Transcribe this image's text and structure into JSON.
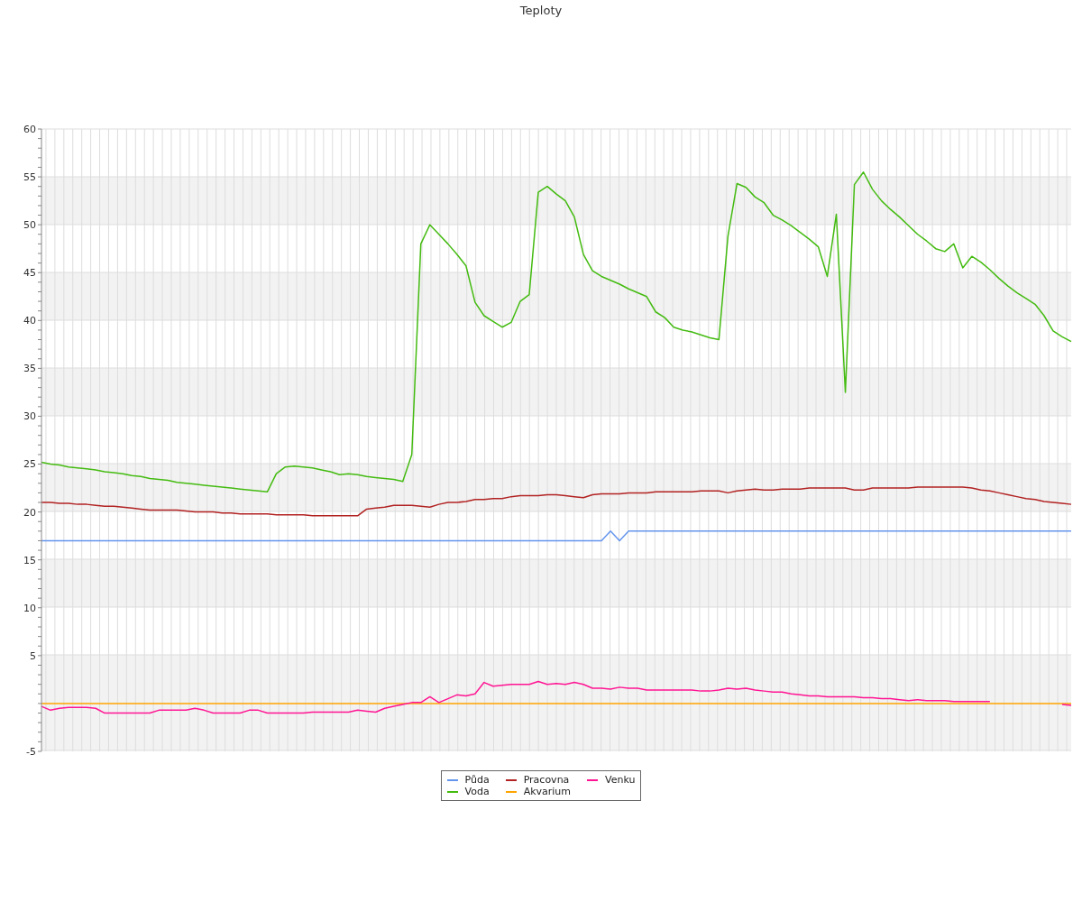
{
  "chart_data": {
    "type": "line",
    "title": "Teploty",
    "categories": [
      null,
      null,
      null,
      null,
      null,
      null,
      null,
      null,
      null,
      null,
      null,
      null,
      null,
      null,
      null,
      null,
      null,
      null,
      null,
      null,
      null,
      null,
      null,
      null,
      null,
      null,
      null,
      null,
      null,
      null,
      null,
      null,
      null,
      null,
      null,
      null,
      null,
      null,
      null,
      null,
      null,
      null,
      null,
      null,
      null,
      null,
      null,
      null,
      null,
      null,
      null,
      null,
      null,
      null,
      null,
      null,
      null,
      null,
      null,
      null,
      null,
      null,
      null,
      null,
      null,
      null,
      null,
      null,
      null,
      null,
      null,
      null,
      null,
      null,
      null,
      null,
      null,
      null,
      null,
      null,
      null,
      null,
      null,
      null,
      null,
      null,
      null,
      null,
      null,
      null,
      null,
      null,
      null,
      null,
      null,
      null,
      null,
      null,
      null,
      null,
      null,
      null,
      null,
      null,
      null,
      null,
      null,
      null,
      null,
      null,
      null,
      null,
      null,
      null,
      null
    ],
    "series": [
      {
        "name": "Půda",
        "color": "#6495ed",
        "values": [
          17,
          17,
          17,
          17,
          17,
          17,
          17,
          17,
          17,
          17,
          17,
          17,
          17,
          17,
          17,
          17,
          17,
          17,
          17,
          17,
          17,
          17,
          17,
          17,
          17,
          17,
          17,
          17,
          17,
          17,
          17,
          17,
          17,
          17,
          17,
          17,
          17,
          17,
          17,
          17,
          17,
          17,
          17,
          17,
          17,
          17,
          17,
          17,
          17,
          17,
          17,
          17,
          17,
          17,
          17,
          17,
          17,
          17,
          17,
          17,
          17,
          17,
          17,
          18,
          17,
          18,
          18,
          18,
          18,
          18,
          18,
          18,
          18,
          18,
          18,
          18,
          18,
          18,
          18,
          18,
          18,
          18,
          18,
          18,
          18,
          18,
          18,
          18,
          18,
          18,
          18,
          18,
          18,
          18,
          18,
          18,
          18,
          18,
          18,
          18,
          18,
          18,
          18,
          18,
          18,
          18,
          18,
          18,
          18,
          18,
          18,
          18,
          18,
          18,
          18
        ]
      },
      {
        "name": "Voda",
        "color": "#44bb11",
        "values": [
          25.2,
          25.0,
          24.9,
          24.7,
          24.6,
          24.5,
          24.4,
          24.2,
          24.1,
          24.0,
          23.8,
          23.7,
          23.5,
          23.4,
          23.3,
          23.1,
          23.0,
          22.9,
          22.8,
          22.7,
          22.6,
          22.5,
          22.4,
          22.3,
          22.2,
          22.1,
          24.0,
          24.7,
          24.8,
          24.7,
          24.6,
          24.4,
          24.2,
          23.9,
          24.0,
          23.9,
          23.7,
          23.6,
          23.5,
          23.4,
          23.2,
          26.0,
          48.0,
          50.0,
          49.0,
          48.0,
          46.9,
          45.7,
          41.9,
          40.5,
          39.9,
          39.3,
          39.8,
          42.0,
          42.7,
          53.4,
          54.0,
          53.2,
          52.5,
          50.8,
          46.9,
          45.2,
          44.6,
          44.2,
          43.8,
          43.3,
          42.9,
          42.5,
          40.9,
          40.3,
          39.3,
          39.0,
          38.8,
          38.5,
          38.2,
          38.0,
          48.8,
          54.3,
          53.9,
          52.9,
          52.3,
          51.0,
          50.5,
          49.9,
          49.2,
          48.5,
          47.7,
          44.6,
          51.1,
          32.5,
          54.2,
          55.5,
          53.7,
          52.5,
          51.6,
          50.8,
          49.9,
          49.0,
          48.3,
          47.5,
          47.2,
          48.0,
          45.5,
          46.7,
          46.1,
          45.3,
          44.4,
          43.6,
          42.9,
          42.3,
          41.7,
          40.5,
          38.9,
          38.3,
          37.8
        ]
      },
      {
        "name": "Pracovna",
        "color": "#b22222",
        "values": [
          21.0,
          21.0,
          20.9,
          20.9,
          20.8,
          20.8,
          20.7,
          20.6,
          20.6,
          20.5,
          20.4,
          20.3,
          20.2,
          20.2,
          20.2,
          20.2,
          20.1,
          20.0,
          20.0,
          20.0,
          19.9,
          19.9,
          19.8,
          19.8,
          19.8,
          19.8,
          19.7,
          19.7,
          19.7,
          19.7,
          19.6,
          19.6,
          19.6,
          19.6,
          19.6,
          19.6,
          20.3,
          20.4,
          20.5,
          20.7,
          20.7,
          20.7,
          20.6,
          20.5,
          20.8,
          21.0,
          21.0,
          21.1,
          21.3,
          21.3,
          21.4,
          21.4,
          21.6,
          21.7,
          21.7,
          21.7,
          21.8,
          21.8,
          21.7,
          21.6,
          21.5,
          21.8,
          21.9,
          21.9,
          21.9,
          22.0,
          22.0,
          22.0,
          22.1,
          22.1,
          22.1,
          22.1,
          22.1,
          22.2,
          22.2,
          22.2,
          22.0,
          22.2,
          22.3,
          22.4,
          22.3,
          22.3,
          22.4,
          22.4,
          22.4,
          22.5,
          22.5,
          22.5,
          22.5,
          22.5,
          22.3,
          22.3,
          22.5,
          22.5,
          22.5,
          22.5,
          22.5,
          22.6,
          22.6,
          22.6,
          22.6,
          22.6,
          22.6,
          22.5,
          22.3,
          22.2,
          22.0,
          21.8,
          21.6,
          21.4,
          21.3,
          21.1,
          21.0,
          20.9,
          20.8
        ]
      },
      {
        "name": "Akvarium",
        "color": "#ffa500",
        "values": [
          0,
          0,
          0,
          0,
          0,
          0,
          0,
          0,
          0,
          0,
          0,
          0,
          0,
          0,
          0,
          0,
          0,
          0,
          0,
          0,
          0,
          0,
          0,
          0,
          0,
          0,
          0,
          0,
          0,
          0,
          0,
          0,
          0,
          0,
          0,
          0,
          0,
          0,
          0,
          0,
          0,
          0,
          0,
          0,
          0,
          0,
          0,
          0,
          0,
          0,
          0,
          0,
          0,
          0,
          0,
          0,
          0,
          0,
          0,
          0,
          0,
          0,
          0,
          0,
          0,
          0,
          0,
          0,
          0,
          0,
          0,
          0,
          0,
          0,
          0,
          0,
          0,
          0,
          0,
          0,
          0,
          0,
          0,
          0,
          0,
          0,
          0,
          0,
          0,
          0,
          0,
          0,
          0,
          0,
          0,
          0,
          0,
          0,
          0,
          0,
          0,
          0,
          0,
          0,
          0,
          0,
          0,
          0,
          0,
          0,
          0,
          0,
          0,
          0,
          0
        ]
      },
      {
        "name": "Venku",
        "color": "#ff1493",
        "values": [
          -0.3,
          -0.7,
          -0.5,
          -0.4,
          -0.4,
          -0.4,
          -0.5,
          -1.0,
          -1.0,
          -1.0,
          -1.0,
          -1.0,
          -1.0,
          -0.7,
          -0.7,
          -0.7,
          -0.7,
          -0.5,
          -0.7,
          -1.0,
          -1.0,
          -1.0,
          -1.0,
          -0.7,
          -0.7,
          -1.0,
          -1.0,
          -1.0,
          -1.0,
          -1.0,
          -0.9,
          -0.9,
          -0.9,
          -0.9,
          -0.9,
          -0.7,
          -0.8,
          -0.9,
          -0.5,
          -0.3,
          -0.1,
          0.1,
          0.1,
          0.7,
          0.1,
          0.5,
          0.9,
          0.8,
          1.0,
          2.2,
          1.8,
          1.9,
          2.0,
          2.0,
          2.0,
          2.3,
          2.0,
          2.1,
          2.0,
          2.2,
          2.0,
          1.6,
          1.6,
          1.5,
          1.7,
          1.6,
          1.6,
          1.4,
          1.4,
          1.4,
          1.4,
          1.4,
          1.4,
          1.3,
          1.3,
          1.4,
          1.6,
          1.5,
          1.6,
          1.4,
          1.3,
          1.2,
          1.2,
          1.0,
          0.9,
          0.8,
          0.8,
          0.7,
          0.7,
          0.7,
          0.7,
          0.6,
          0.6,
          0.5,
          0.5,
          0.4,
          0.3,
          0.4,
          0.3,
          0.3,
          0.3,
          0.2,
          0.2,
          0.2,
          0.2,
          0.2,
          null,
          null,
          null,
          null,
          null,
          null,
          null,
          -0.1,
          -0.2
        ]
      }
    ],
    "ylim": [
      -5,
      60
    ],
    "yticks": [
      -5,
      {
        "value": -4,
        "label": null
      },
      {
        "value": -3,
        "label": null
      },
      {
        "value": -2,
        "label": null
      },
      {
        "value": -1,
        "label": null
      },
      {
        "value": 0,
        "label": null
      },
      {
        "value": 1,
        "label": null
      },
      {
        "value": 2,
        "label": null
      },
      {
        "value": 3,
        "label": null
      },
      {
        "value": 4,
        "label": null
      },
      5,
      {
        "value": 6,
        "label": null
      },
      {
        "value": 7,
        "label": null
      },
      {
        "value": 8,
        "label": null
      },
      {
        "value": 9,
        "label": null
      },
      10,
      {
        "value": 11,
        "label": null
      },
      {
        "value": 12,
        "label": null
      },
      {
        "value": 13,
        "label": null
      },
      {
        "value": 14,
        "label": null
      },
      15,
      {
        "value": 16,
        "label": null
      },
      {
        "value": 17,
        "label": null
      },
      {
        "value": 18,
        "label": null
      },
      {
        "value": 19,
        "label": null
      },
      20,
      {
        "value": 21,
        "label": null
      },
      {
        "value": 22,
        "label": null
      },
      {
        "value": 23,
        "label": null
      },
      {
        "value": 24,
        "label": null
      },
      25,
      {
        "value": 26,
        "label": null
      },
      {
        "value": 27,
        "label": null
      },
      {
        "value": 28,
        "label": null
      },
      {
        "value": 29,
        "label": null
      },
      30,
      {
        "value": 31,
        "label": null
      },
      {
        "value": 32,
        "label": null
      },
      {
        "value": 33,
        "label": null
      },
      {
        "value": 34,
        "label": null
      },
      35,
      {
        "value": 36,
        "label": null
      },
      {
        "value": 37,
        "label": null
      },
      {
        "value": 38,
        "label": null
      },
      {
        "value": 39,
        "label": null
      },
      40,
      {
        "value": 41,
        "label": null
      },
      {
        "value": 42,
        "label": null
      },
      {
        "value": 43,
        "label": null
      },
      {
        "value": 44,
        "label": null
      },
      45,
      {
        "value": 46,
        "label": null
      },
      {
        "value": 47,
        "label": null
      },
      {
        "value": 48,
        "label": null
      },
      {
        "value": 49,
        "label": null
      },
      50,
      {
        "value": 51,
        "label": null
      },
      {
        "value": 52,
        "label": null
      },
      {
        "value": 53,
        "label": null
      },
      {
        "value": 54,
        "label": null
      },
      55,
      {
        "value": 56,
        "label": null
      },
      {
        "value": 57,
        "label": null
      },
      {
        "value": 58,
        "label": null
      },
      {
        "value": 59,
        "label": null
      },
      60
    ],
    "grid": true,
    "legend": "bottom",
    "marker": "none",
    "line_style": "solid",
    "tick_labels": "y"
  }
}
